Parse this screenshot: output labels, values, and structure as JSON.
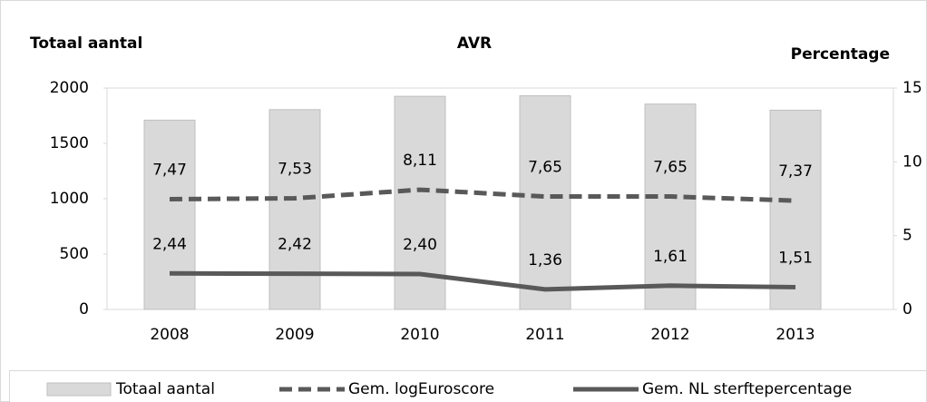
{
  "chart_data": {
    "type": "bar",
    "title": "AVR",
    "ylabel": "Totaal aantal",
    "y2label": "Percentage",
    "categories": [
      "2008",
      "2009",
      "2010",
      "2011",
      "2012",
      "2013"
    ],
    "series": [
      {
        "name": "Totaal aantal",
        "type": "bar",
        "color": "#d9d9d9",
        "values": [
          1710,
          1805,
          1925,
          1930,
          1855,
          1800
        ]
      },
      {
        "name": "Gem. logEuroscore",
        "type": "line",
        "style": "dashed",
        "axis": "y2",
        "color": "#595959",
        "values": [
          7.47,
          7.53,
          8.11,
          7.65,
          7.65,
          7.37
        ],
        "value_labels": [
          "7,47",
          "7,53",
          "8,11",
          "7,65",
          "7,65",
          "7,37"
        ]
      },
      {
        "name": "Gem. NL sterftepercentage",
        "type": "line",
        "style": "solid",
        "axis": "y2",
        "color": "#595959",
        "values": [
          2.44,
          2.42,
          2.4,
          1.36,
          1.61,
          1.51
        ],
        "value_labels": [
          "2,44",
          "2,42",
          "2,40",
          "1,36",
          "1,61",
          "1,51"
        ]
      }
    ],
    "ylim": [
      0,
      2000
    ],
    "yticks": [
      0,
      500,
      1000,
      1500,
      2000
    ],
    "y2lim": [
      0,
      15
    ],
    "y2ticks": [
      0,
      5,
      10,
      15
    ],
    "grid": false,
    "legend": "bottom"
  }
}
